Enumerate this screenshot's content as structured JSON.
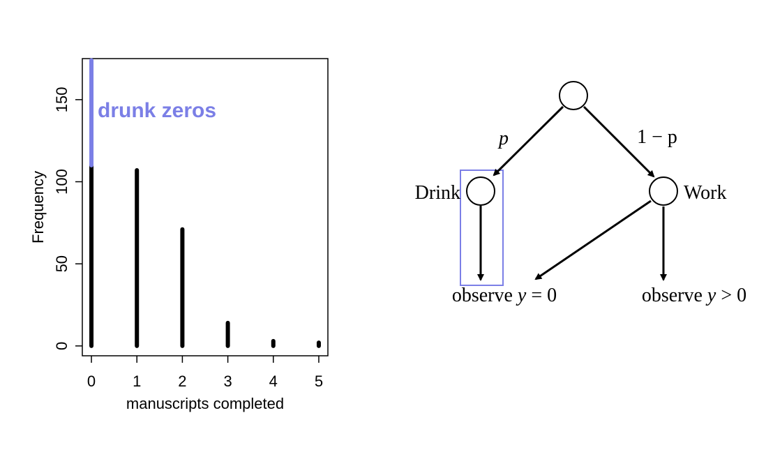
{
  "chart_data": {
    "type": "bar",
    "xlabel": "manuscripts completed",
    "ylabel": "Frequency",
    "xlim": [
      -0.2,
      5.2
    ],
    "ylim": [
      -6,
      175
    ],
    "x_ticks": [
      "0",
      "1",
      "2",
      "3",
      "4",
      "5"
    ],
    "y_ticks": [
      "0",
      "50",
      "100",
      "150"
    ],
    "categories": [
      0,
      1,
      2,
      3,
      4,
      5
    ],
    "series": [
      {
        "values": [
          110,
          107,
          71,
          14,
          3,
          2
        ],
        "color": "#000000"
      },
      {
        "values": [
          64,
          0,
          0,
          0,
          0,
          0
        ],
        "color": "#7b7fe6"
      }
    ],
    "annotation": "drunk zeros",
    "annotation_color": "#7b7fe6"
  },
  "diagram": {
    "edge_label_left": "p",
    "edge_label_right": "1 − p",
    "node_drink": "Drink",
    "node_work": "Work",
    "outcome_zero": {
      "word": "observe",
      "var": "y",
      "rel": "= 0"
    },
    "outcome_positive": {
      "word": "observe",
      "var": "y",
      "rel": "> 0"
    },
    "highlight_color": "#7b7fe6"
  }
}
